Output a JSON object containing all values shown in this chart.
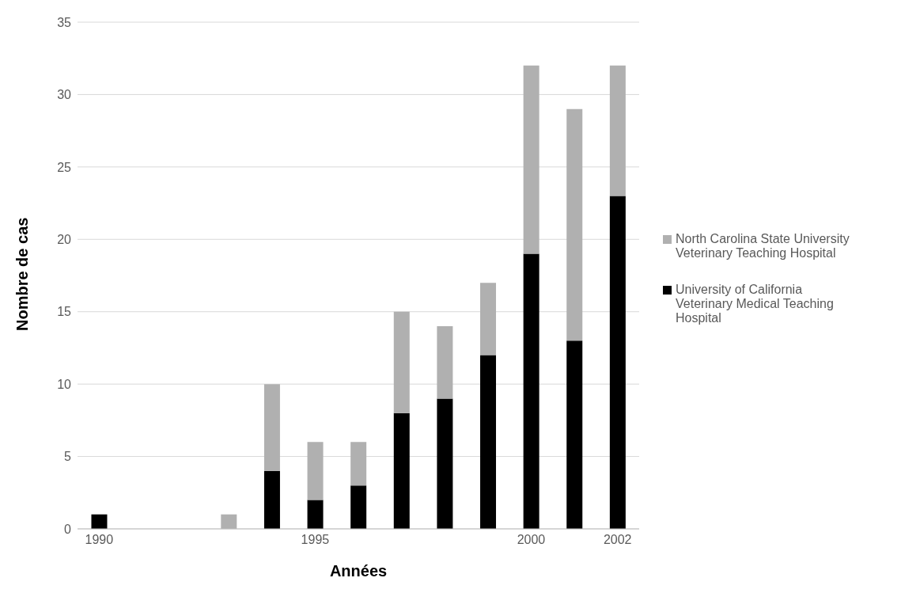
{
  "chart_data": {
    "type": "bar",
    "stacked": true,
    "xlabel": "Années",
    "ylabel": "Nombre de cas",
    "categories": [
      "1990",
      null,
      null,
      null,
      null,
      "1995",
      null,
      null,
      null,
      null,
      "2000",
      null,
      "2002"
    ],
    "series": [
      {
        "name": "University of California Veterinary Medical Teaching Hospital",
        "color": "#000000",
        "values": [
          1,
          null,
          null,
          null,
          4,
          2,
          3,
          8,
          9,
          12,
          19,
          13,
          23
        ]
      },
      {
        "name": "North Carolina State University Veterinary Teaching Hospital",
        "color": "#b0b0b0",
        "values": [
          null,
          null,
          null,
          1,
          6,
          4,
          3,
          7,
          5,
          5,
          13,
          16,
          9
        ]
      }
    ],
    "ylim": [
      0,
      35
    ],
    "yticks": [
      0,
      5,
      10,
      15,
      20,
      25,
      30,
      35
    ],
    "grid": "y",
    "legend": "right"
  }
}
